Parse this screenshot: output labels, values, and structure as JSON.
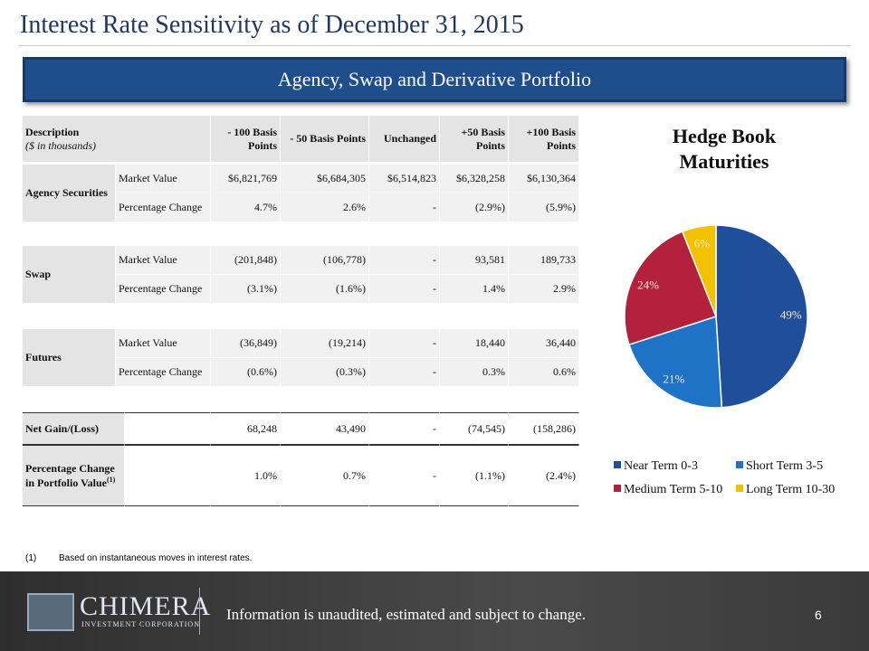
{
  "title": "Interest Rate Sensitivity as of December 31, 2015",
  "banner": "Agency, Swap and Derivative Portfolio",
  "table": {
    "desc_header": "Description",
    "desc_subheader": "($ in thousands)",
    "headers": [
      "- 100 Basis Points",
      "- 50 Basis Points",
      "Unchanged",
      "+50 Basis Points",
      "+100 Basis Points"
    ],
    "groups": [
      {
        "name": "Agency Securities",
        "rows": [
          {
            "label": "Market Value",
            "values": [
              "$6,821,769",
              "$6,684,305",
              "$6,514,823",
              "$6,328,258",
              "$6,130,364"
            ]
          },
          {
            "label": "Percentage Change",
            "values": [
              "4.7%",
              "2.6%",
              "-",
              "(2.9%)",
              "(5.9%)"
            ]
          }
        ]
      },
      {
        "name": "Swap",
        "rows": [
          {
            "label": "Market Value",
            "values": [
              "(201,848)",
              "(106,778)",
              "-",
              "93,581",
              "189,733"
            ]
          },
          {
            "label": "Percentage Change",
            "values": [
              "(3.1%)",
              "(1.6%)",
              "-",
              "1.4%",
              "2.9%"
            ]
          }
        ]
      },
      {
        "name": "Futures",
        "rows": [
          {
            "label": "Market Value",
            "values": [
              "(36,849)",
              "(19,214)",
              "-",
              "18,440",
              "36,440"
            ]
          },
          {
            "label": "Percentage Change",
            "values": [
              "(0.6%)",
              "(0.3%)",
              "-",
              "0.3%",
              "0.6%"
            ]
          }
        ]
      }
    ],
    "totals": [
      {
        "label": "Net Gain/(Loss)",
        "values": [
          "68,248",
          "43,490",
          "-",
          "(74,545)",
          "(158,286)"
        ]
      },
      {
        "label": "Percentage Change in Portfolio Value",
        "note": "(1)",
        "values": [
          "1.0%",
          "0.7%",
          "-",
          "(1.1%)",
          "(2.4%)"
        ]
      }
    ]
  },
  "chart_data": {
    "type": "pie",
    "title": "Hedge Book Maturities",
    "categories": [
      "Near Term 0-3",
      "Short Term 3-5",
      "Medium Term 5-10",
      "Long Term 10-30"
    ],
    "values": [
      49,
      21,
      24,
      6
    ],
    "value_labels": [
      "49%",
      "21%",
      "24%",
      "6%"
    ],
    "colors": [
      "#1f4e9a",
      "#1e73c6",
      "#b3213c",
      "#f2c200"
    ],
    "legend": "bottom"
  },
  "footnote": {
    "mark": "(1)",
    "text": "Based on instantaneous moves in interest rates."
  },
  "footer": {
    "logo": "CHIMERA",
    "logo_sub": "INVESTMENT CORPORATION",
    "text": "Information is unaudited, estimated and subject to change.",
    "page": "6"
  }
}
